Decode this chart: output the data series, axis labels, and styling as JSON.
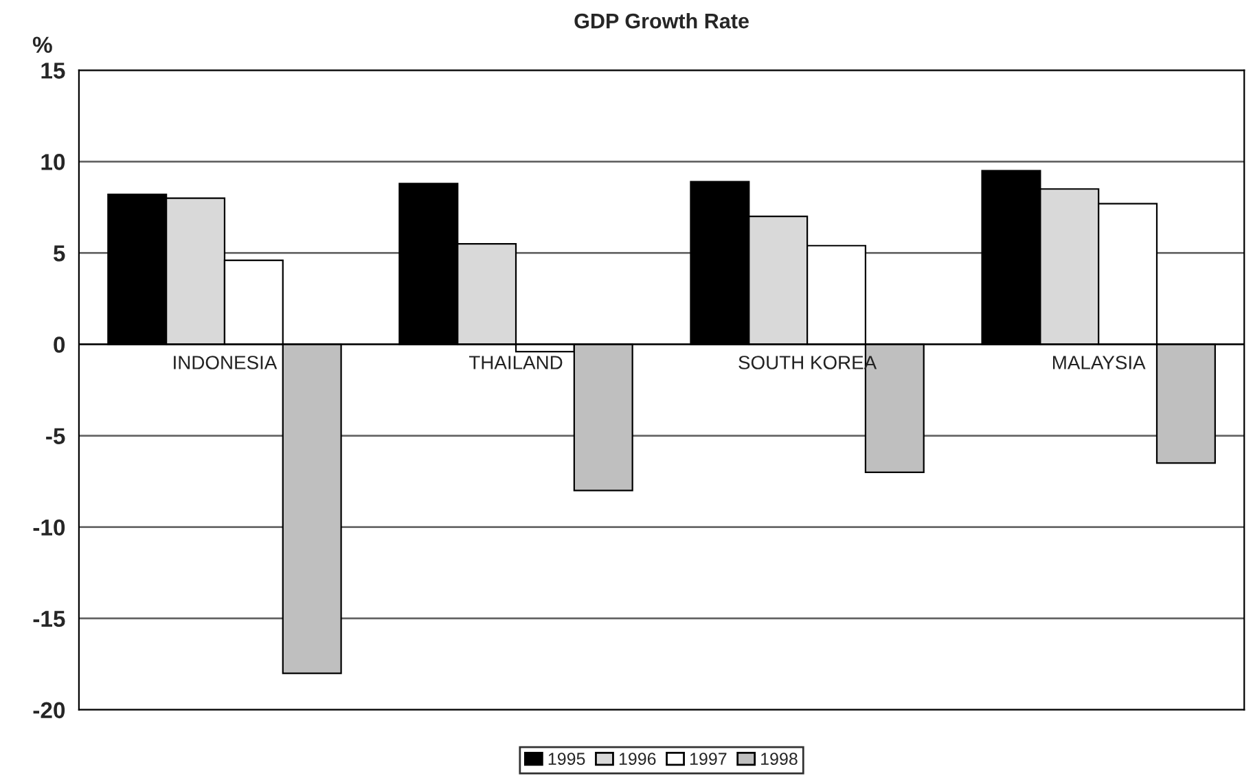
{
  "chart_data": {
    "type": "bar",
    "title": "GDP Growth Rate",
    "ylabel": "%",
    "categories": [
      "INDONESIA",
      "THAILAND",
      "SOUTH KOREA",
      "MALAYSIA"
    ],
    "series": [
      {
        "name": "1995",
        "color": "#000000",
        "values": [
          8.2,
          8.8,
          8.9,
          9.5
        ]
      },
      {
        "name": "1996",
        "color": "#d9d9d9",
        "values": [
          8.0,
          5.5,
          7.0,
          8.5
        ]
      },
      {
        "name": "1997",
        "color": "#ffffff",
        "values": [
          4.6,
          -0.4,
          5.4,
          7.7
        ]
      },
      {
        "name": "1998",
        "color": "#bfbfbf",
        "values": [
          -18.0,
          -8.0,
          -7.0,
          -6.5
        ]
      }
    ],
    "ylim": [
      -20,
      15
    ],
    "yticks": [
      -20,
      -15,
      -10,
      -5,
      0,
      5,
      10,
      15
    ],
    "grid": "y",
    "legend": "bottom"
  }
}
